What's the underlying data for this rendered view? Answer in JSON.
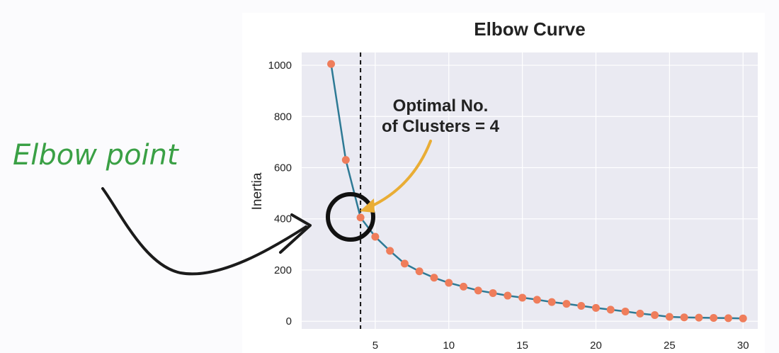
{
  "chart_data": {
    "type": "line",
    "title": "Elbow Curve",
    "xlabel": "",
    "ylabel": "Inertia",
    "xlim": [
      0,
      31
    ],
    "ylim": [
      -30,
      1050
    ],
    "xticks": [
      5,
      10,
      15,
      20,
      25,
      30
    ],
    "yticks": [
      0,
      200,
      400,
      600,
      800,
      1000
    ],
    "grid": true,
    "x": [
      2,
      3,
      4,
      5,
      6,
      7,
      8,
      9,
      10,
      11,
      12,
      13,
      14,
      15,
      16,
      17,
      18,
      19,
      20,
      21,
      22,
      23,
      24,
      25,
      26,
      27,
      28,
      29,
      30
    ],
    "y": [
      1005,
      630,
      405,
      330,
      275,
      225,
      195,
      170,
      150,
      135,
      120,
      110,
      100,
      92,
      84,
      75,
      68,
      60,
      52,
      45,
      38,
      30,
      24,
      17,
      15,
      14,
      13,
      12,
      11
    ],
    "vline_x": 4,
    "annotation": {
      "line1": "Optimal No.",
      "line2": "of Clusters = 4"
    },
    "colors": {
      "line": "#2e7a95",
      "marker": "#ef7d5b",
      "plot_bg": "#eaeaf2",
      "grid": "#ffffff",
      "annotation_arrow": "#e9ad35",
      "hand_arrow": "#1b1b1b",
      "hand_text": "#3aa045"
    }
  },
  "overlay": {
    "hand_label": "Elbow point"
  }
}
